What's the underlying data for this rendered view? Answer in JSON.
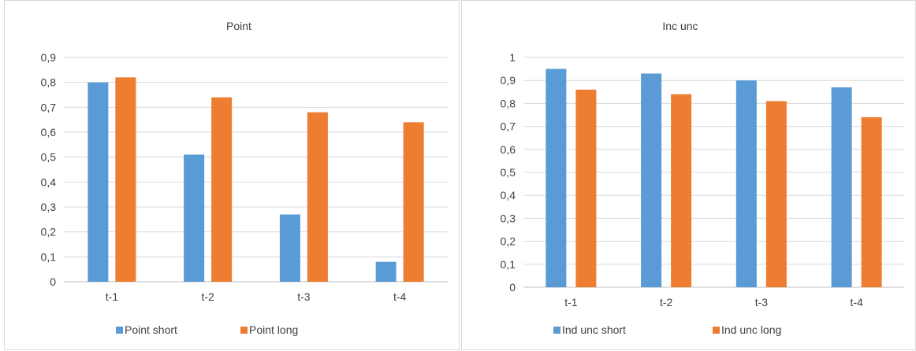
{
  "chart_data": [
    {
      "type": "bar",
      "title": "Point",
      "categories": [
        "t-1",
        "t-2",
        "t-3",
        "t-4"
      ],
      "series": [
        {
          "name": "Point short",
          "values": [
            0.8,
            0.51,
            0.27,
            0.08
          ],
          "color": "#5b9bd5"
        },
        {
          "name": "Point long",
          "values": [
            0.82,
            0.74,
            0.68,
            0.64
          ],
          "color": "#ed7d31"
        }
      ],
      "ylim": [
        0,
        0.9
      ],
      "yticks": [
        "0",
        "0,1",
        "0,2",
        "0,3",
        "0,4",
        "0,5",
        "0,6",
        "0,7",
        "0,8",
        "0,9"
      ],
      "grid": true,
      "legend": "bottom"
    },
    {
      "type": "bar",
      "title": "Inc unc",
      "categories": [
        "t-1",
        "t-2",
        "t-3",
        "t-4"
      ],
      "series": [
        {
          "name": "Ind unc short",
          "values": [
            0.95,
            0.93,
            0.9,
            0.87
          ],
          "color": "#5b9bd5"
        },
        {
          "name": "Ind unc long",
          "values": [
            0.86,
            0.84,
            0.81,
            0.74
          ],
          "color": "#ed7d31"
        }
      ],
      "ylim": [
        0,
        1
      ],
      "yticks": [
        "0",
        "0,1",
        "0,2",
        "0,3",
        "0,4",
        "0,5",
        "0,6",
        "0,7",
        "0,8",
        "0,9",
        "1"
      ],
      "grid": true,
      "legend": "bottom"
    }
  ]
}
